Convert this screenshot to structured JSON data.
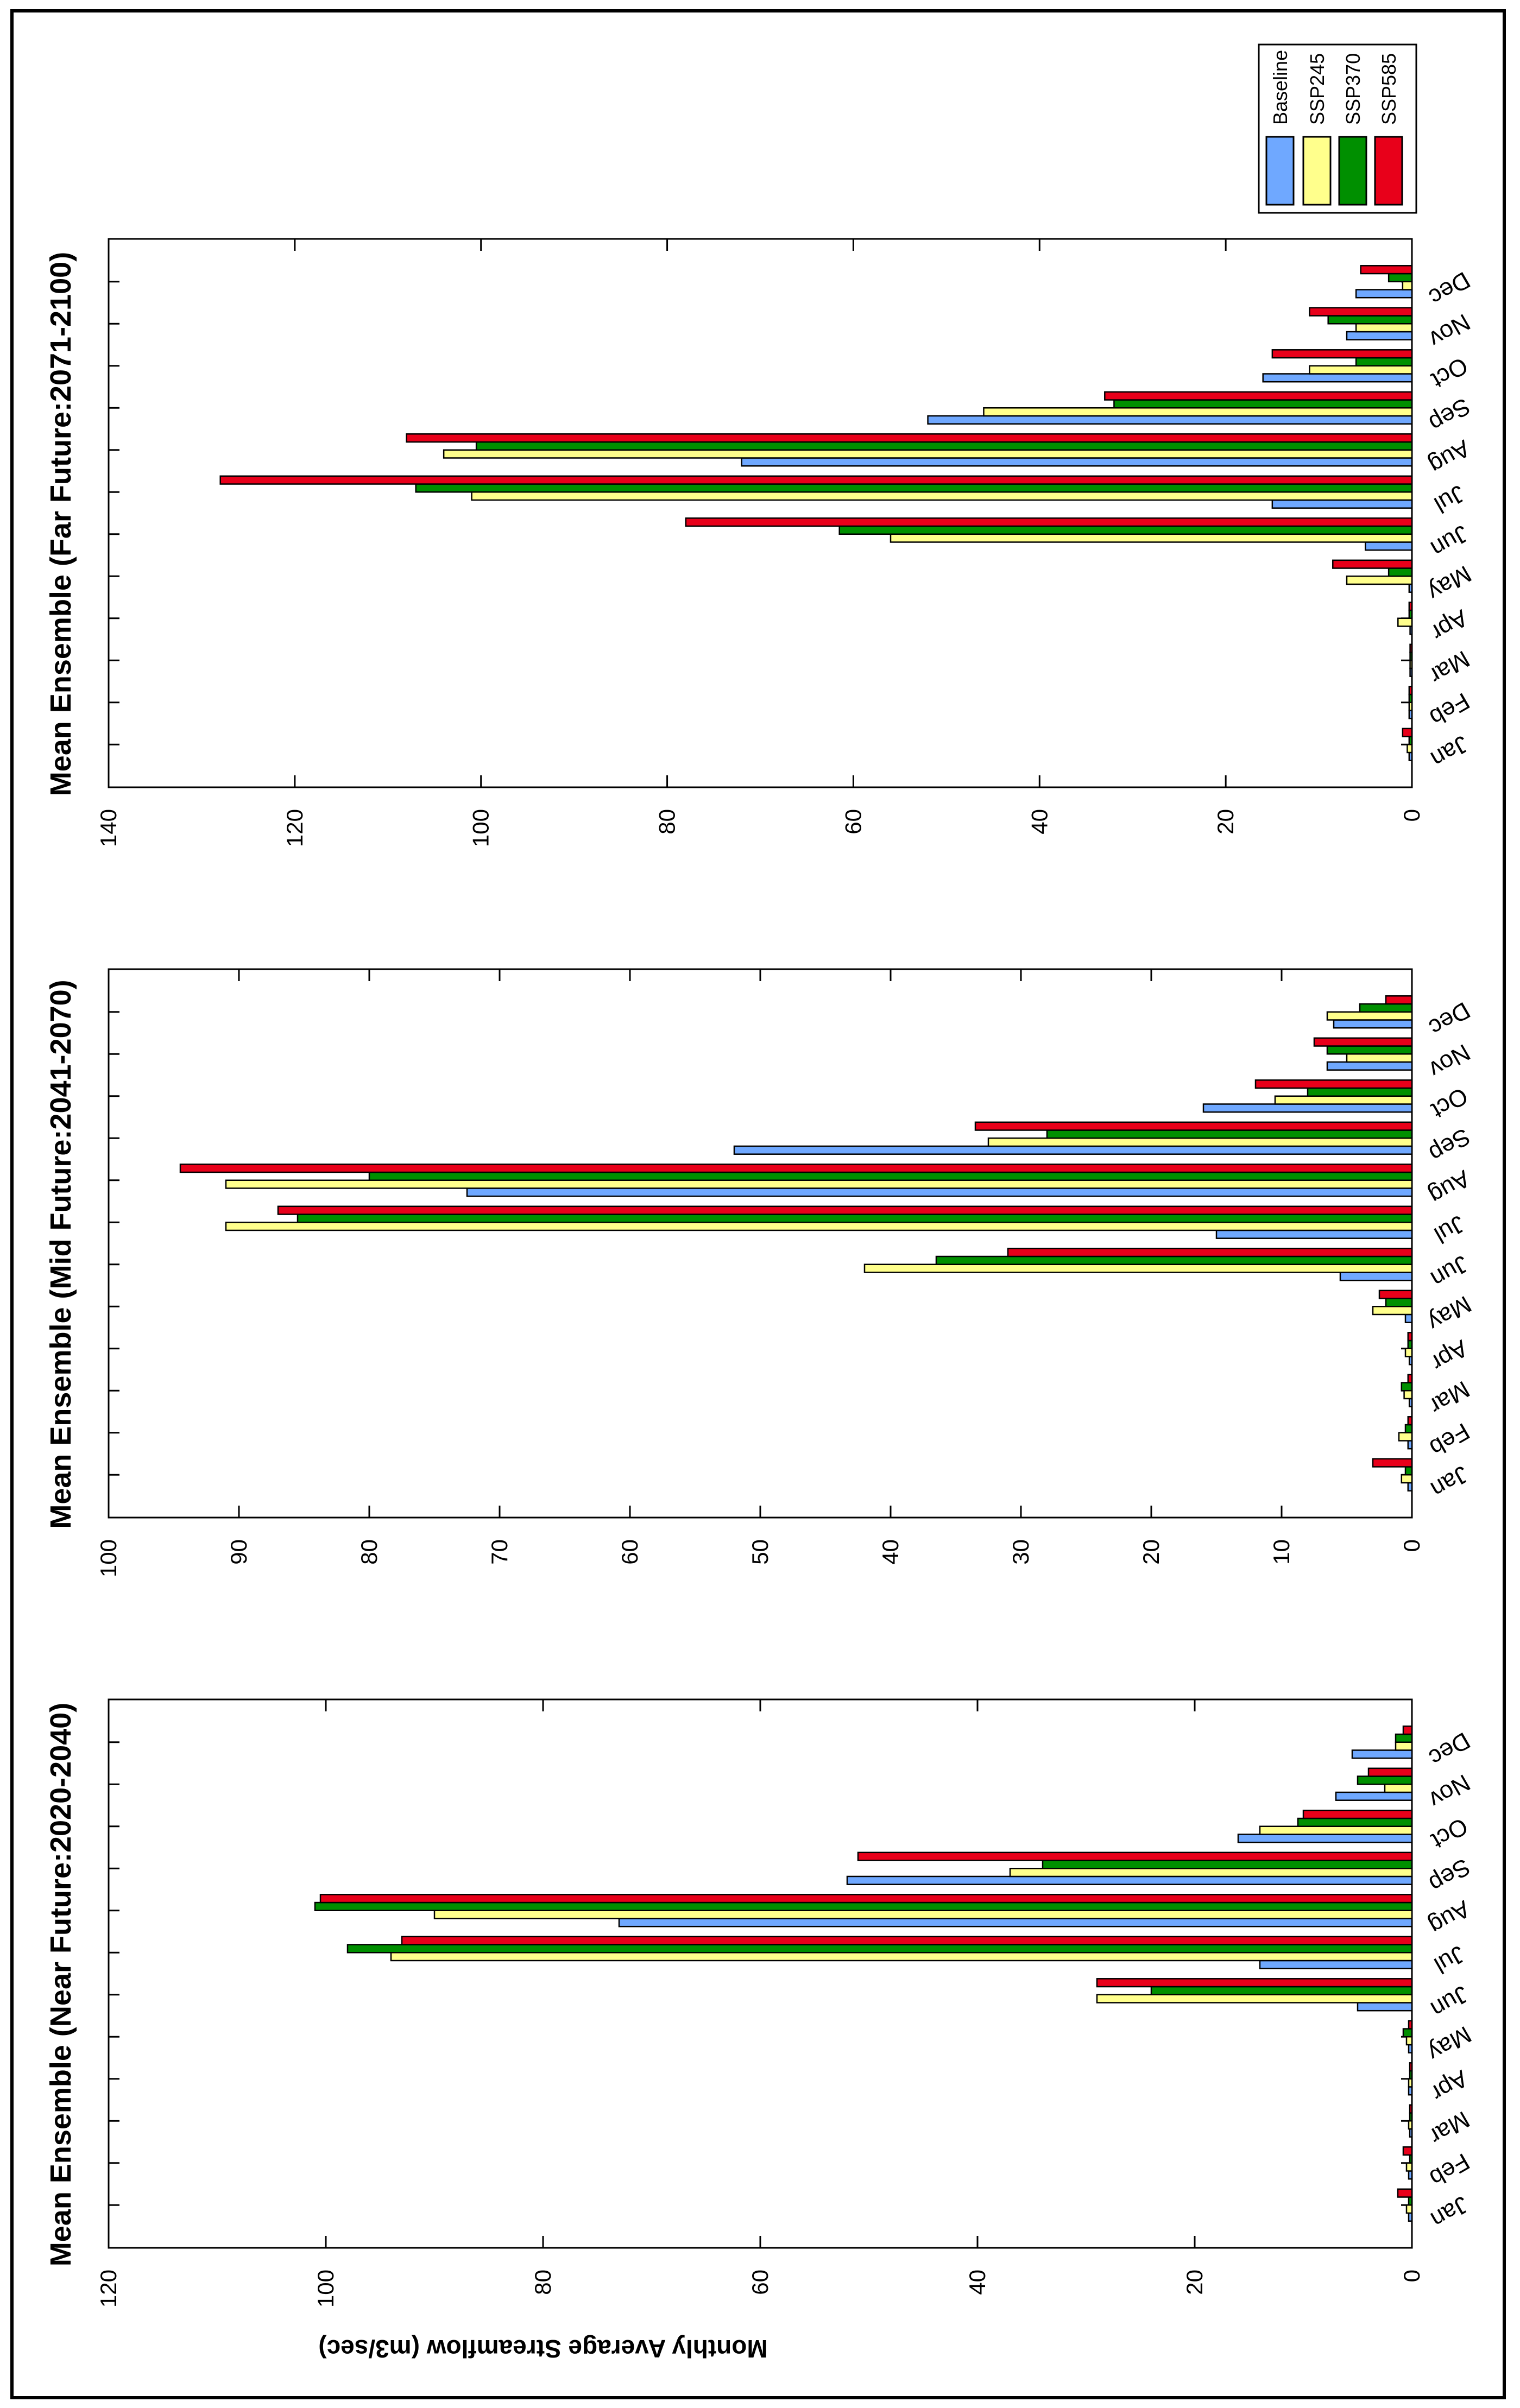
{
  "figure": {
    "ylabel": "Monthly  Average  Streamflow (m3/sec)"
  },
  "legend": {
    "items": [
      {
        "name": "Baseline",
        "color": "#6FA8FF"
      },
      {
        "name": "SSP245",
        "color": "#FFFF8C"
      },
      {
        "name": "SSP370",
        "color": "#008F00"
      },
      {
        "name": "SSP585",
        "color": "#E8001A"
      }
    ]
  },
  "chart_data": [
    {
      "type": "bar",
      "title": "Mean Ensemble (Near Future:2020-2040)",
      "ylabel": "Monthly  Average  Streamflow (m3/sec)",
      "ylim": [
        0,
        120
      ],
      "yticks": [
        0,
        20,
        40,
        60,
        80,
        100,
        120
      ],
      "categories": [
        "Jan",
        "Feb",
        "Mar",
        "Apr",
        "May",
        "Jun",
        "Jul",
        "Aug",
        "Sep",
        "Oct",
        "Nov",
        "Dec"
      ],
      "series": [
        {
          "name": "Baseline",
          "values": [
            0.3,
            0.3,
            0.2,
            0.3,
            0.3,
            5,
            14,
            73,
            52,
            16,
            7,
            5.5
          ]
        },
        {
          "name": "SSP245",
          "values": [
            0.5,
            0.5,
            0.3,
            0.3,
            0.5,
            29,
            94,
            90,
            37,
            14,
            2.5,
            1.5
          ]
        },
        {
          "name": "SSP370",
          "values": [
            0.3,
            0.2,
            0.2,
            0.2,
            0.8,
            24,
            98,
            101,
            34,
            10.5,
            5,
            1.5
          ]
        },
        {
          "name": "SSP585",
          "values": [
            1.3,
            0.8,
            0.2,
            0.2,
            0.3,
            29,
            93,
            100.5,
            51,
            10,
            4,
            0.8
          ]
        }
      ]
    },
    {
      "type": "bar",
      "title": "Mean Ensemble (Mid Future:2041-2070)",
      "ylim": [
        0,
        100
      ],
      "yticks": [
        0,
        10,
        20,
        30,
        40,
        50,
        60,
        70,
        80,
        90,
        100
      ],
      "categories": [
        "Jan",
        "Feb",
        "Mar",
        "Apr",
        "May",
        "Jun",
        "Jul",
        "Aug",
        "Sep",
        "Oct",
        "Nov",
        "Dec"
      ],
      "series": [
        {
          "name": "Baseline",
          "values": [
            0.3,
            0.3,
            0.2,
            0.2,
            0.5,
            5.5,
            15,
            72.5,
            52,
            16,
            6.5,
            6
          ]
        },
        {
          "name": "SSP245",
          "values": [
            0.8,
            1.0,
            0.6,
            0.5,
            3,
            42,
            91,
            91,
            32.5,
            10.5,
            5,
            6.5
          ]
        },
        {
          "name": "SSP370",
          "values": [
            0.5,
            0.5,
            0.8,
            0.3,
            2,
            36.5,
            85.5,
            80,
            28,
            8,
            6.5,
            4
          ]
        },
        {
          "name": "SSP585",
          "values": [
            3,
            0.3,
            0.3,
            0.3,
            2.5,
            31,
            87,
            94.5,
            33.5,
            12,
            7.5,
            2
          ]
        }
      ]
    },
    {
      "type": "bar",
      "title": "Mean Ensemble (Far Future:2071-2100)",
      "ylim": [
        0,
        140
      ],
      "yticks": [
        0,
        20,
        40,
        60,
        80,
        100,
        120,
        140
      ],
      "categories": [
        "Jan",
        "Feb",
        "Mar",
        "Apr",
        "May",
        "Jun",
        "Jul",
        "Aug",
        "Sep",
        "Oct",
        "Nov",
        "Dec"
      ],
      "series": [
        {
          "name": "Baseline",
          "values": [
            0.3,
            0.3,
            0.2,
            0.2,
            0.3,
            5,
            15,
            72,
            52,
            16,
            7,
            6
          ]
        },
        {
          "name": "SSP245",
          "values": [
            0.5,
            0.3,
            0.2,
            1.5,
            7,
            56,
            101,
            104,
            46,
            11,
            6,
            1
          ]
        },
        {
          "name": "SSP370",
          "values": [
            0.3,
            0.3,
            0.2,
            0.3,
            2.5,
            61.5,
            107,
            100.5,
            32,
            6,
            9,
            2.5
          ]
        },
        {
          "name": "SSP585",
          "values": [
            1,
            0.3,
            0.2,
            0.3,
            8.5,
            78,
            128,
            108,
            33,
            15,
            11,
            5.5
          ]
        }
      ]
    }
  ]
}
